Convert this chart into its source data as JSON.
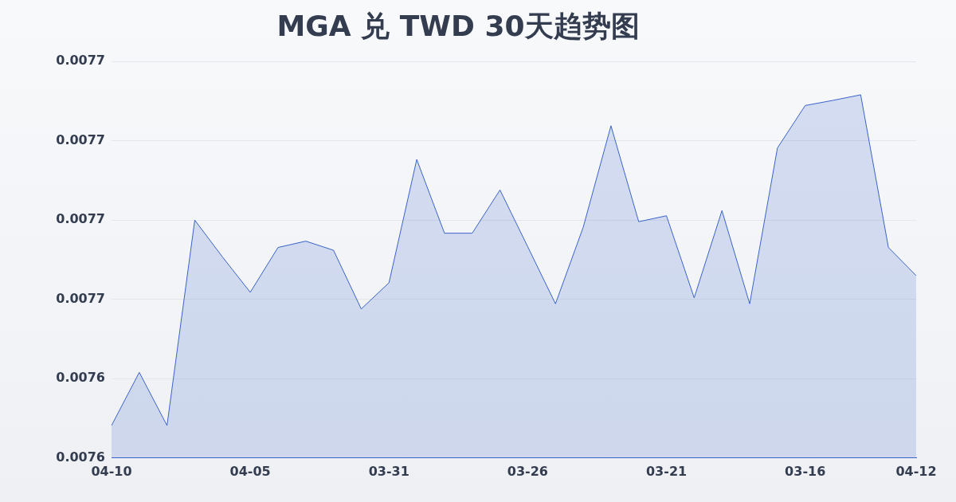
{
  "chart_data": {
    "type": "area",
    "title": "MGA 兑 TWD 30天趋势图",
    "categories": [
      "04-10",
      null,
      null,
      null,
      null,
      "04-05",
      null,
      null,
      null,
      null,
      "03-31",
      null,
      null,
      null,
      null,
      "03-26",
      null,
      null,
      null,
      null,
      "03-21",
      null,
      null,
      null,
      null,
      "03-16",
      null,
      null,
      null,
      "04-12"
    ],
    "series": [
      {
        "color": "#3a63c9",
        "values": [
          0.0076282,
          0.0076416,
          0.0076282,
          0.00768,
          0.0076707,
          0.0076618,
          0.0076731,
          0.0076747,
          0.0076724,
          0.0076576,
          0.0076642,
          0.0076953,
          0.0076767,
          0.0076767,
          0.0076876,
          0.0076733,
          0.0076589,
          0.0076782,
          0.0077038,
          0.0076796,
          0.0076811,
          0.0076604,
          0.0076824,
          0.0076589,
          0.0076982,
          0.0077089,
          0.0077102,
          0.0077116,
          0.0076731,
          0.007666
        ]
      }
    ],
    "ylim": [
      0.00762,
      0.00772
    ],
    "yticks": [
      {
        "value": 0.00762,
        "label": "0.0076"
      },
      {
        "value": 0.00764,
        "label": "0.0076"
      },
      {
        "value": 0.00766,
        "label": "0.0077"
      },
      {
        "value": 0.00768,
        "label": "0.0077"
      },
      {
        "value": 0.0077,
        "label": "0.0077"
      },
      {
        "value": 0.00772,
        "label": "0.0077"
      }
    ],
    "grid": "y",
    "legend": false,
    "marker": "none",
    "line_style": "solid"
  }
}
